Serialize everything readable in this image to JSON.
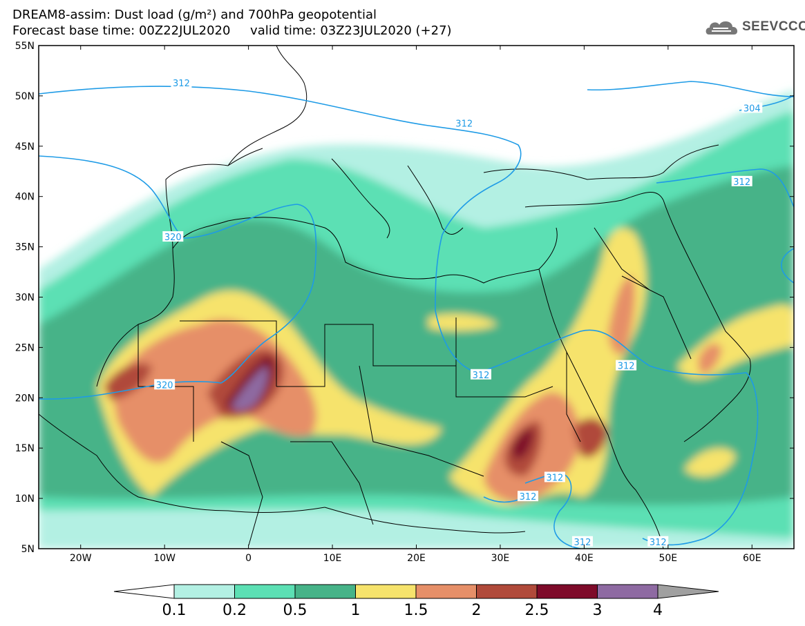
{
  "header": {
    "line1": "DREAM8-assim: Dust load (g/m²) and 700hPa geopotential",
    "line2": "Forecast base time: 00Z22JUL2020     valid time: 03Z23JUL2020 (+27)"
  },
  "logo": {
    "text": "SEEVCCC",
    "icon": "cloud-logo-icon"
  },
  "map": {
    "lat_labels": [
      "55N",
      "50N",
      "45N",
      "40N",
      "35N",
      "30N",
      "25N",
      "20N",
      "15N",
      "10N",
      "5N"
    ],
    "lon_labels": [
      "20W",
      "10W",
      "0",
      "10E",
      "20E",
      "30E",
      "40E",
      "50E",
      "60E"
    ],
    "extent": {
      "lon_min": -25,
      "lon_max": 65,
      "lat_min": 5,
      "lat_max": 55
    },
    "contour_labels": [
      {
        "text": "312",
        "lon": -8,
        "lat": 51.3
      },
      {
        "text": "312",
        "lon": 25.7,
        "lat": 47.3
      },
      {
        "text": "304",
        "lon": 60,
        "lat": 48.8
      },
      {
        "text": "312",
        "lon": 58.8,
        "lat": 41.5
      },
      {
        "text": "320",
        "lon": -9,
        "lat": 36
      },
      {
        "text": "320",
        "lon": -10,
        "lat": 21.3
      },
      {
        "text": "312",
        "lon": 27.7,
        "lat": 22.3
      },
      {
        "text": "312",
        "lon": 45,
        "lat": 23.2
      },
      {
        "text": "312",
        "lon": 36.5,
        "lat": 12.1
      },
      {
        "text": "312",
        "lon": 33.3,
        "lat": 10.2
      },
      {
        "text": "312",
        "lon": 39.8,
        "lat": 5.7
      },
      {
        "text": "312",
        "lon": 48.8,
        "lat": 5.7
      }
    ]
  },
  "colorbar": {
    "labels": [
      "0.1",
      "0.2",
      "0.5",
      "1",
      "1.5",
      "2",
      "2.5",
      "3",
      "4"
    ],
    "colors": [
      "#b3f0e3",
      "#5ce0b4",
      "#46b388",
      "#f6e36c",
      "#e68f68",
      "#b04a3a",
      "#7e0b2a",
      "#8e6aa2"
    ],
    "under_color": "#ffffff",
    "over_color": "#a0a0a0"
  }
}
